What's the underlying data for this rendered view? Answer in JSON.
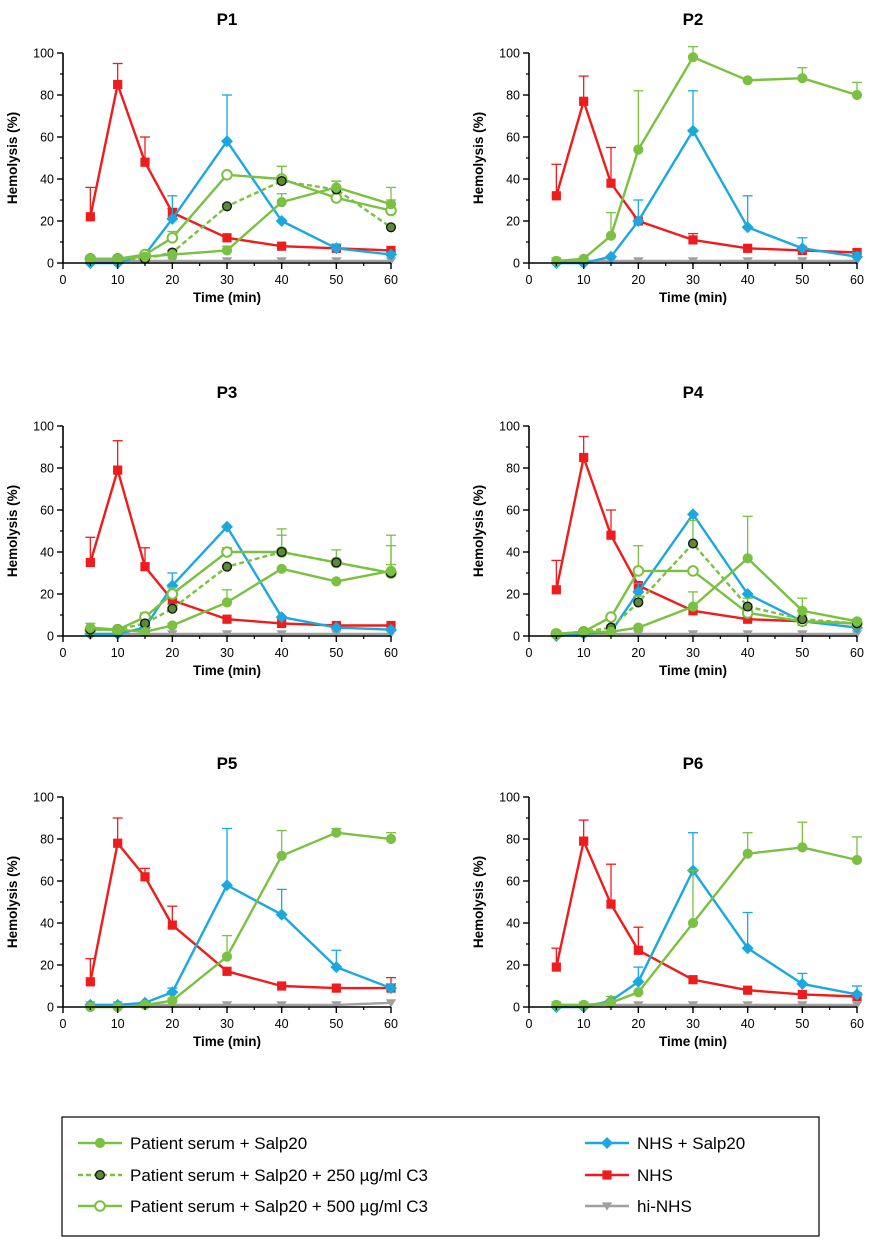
{
  "chart_data": [
    {
      "type": "line",
      "title": "P1",
      "xlabel": "Time (min)",
      "ylabel": "Hemolysis (%)",
      "xlim": [
        0,
        60
      ],
      "ylim": [
        0,
        100
      ],
      "xticks": [
        0,
        10,
        20,
        30,
        40,
        50,
        60
      ],
      "yticks": [
        0,
        20,
        40,
        60,
        80,
        100
      ],
      "x": [
        5,
        10,
        15,
        20,
        30,
        40,
        50,
        60
      ],
      "series": [
        {
          "name": "Patient serum + Salp20",
          "values": [
            2,
            2,
            3,
            4,
            6,
            29,
            36,
            28
          ],
          "err": [
            0,
            0,
            1,
            1,
            2,
            4,
            3,
            8
          ]
        },
        {
          "name": "Patient serum + Salp20 + 250 µg/ml C3",
          "values": [
            2,
            2,
            2,
            5,
            27,
            39,
            35,
            17
          ],
          "err": [
            0,
            0,
            0,
            1,
            1,
            7,
            4,
            0
          ]
        },
        {
          "name": "Patient serum + Salp20 + 500 µg/ml C3",
          "values": [
            2,
            2,
            4,
            12,
            42,
            40,
            31,
            25
          ],
          "err": [
            0,
            0,
            1,
            3,
            0,
            6,
            4,
            5
          ]
        },
        {
          "name": "NHS + Salp20",
          "values": [
            0,
            0,
            4,
            21,
            58,
            20,
            7,
            4
          ],
          "err": [
            0,
            0,
            1,
            11,
            22,
            0,
            2,
            1
          ]
        },
        {
          "name": "NHS",
          "values": [
            22,
            85,
            48,
            24,
            12,
            8,
            7,
            6
          ],
          "err": [
            14,
            10,
            12,
            2,
            0,
            0,
            0,
            0
          ]
        },
        {
          "name": "hi-NHS",
          "values": [
            1,
            1,
            1,
            1,
            1,
            1,
            1,
            1
          ],
          "err": [
            0,
            0,
            0,
            0,
            0,
            0,
            0,
            0
          ]
        }
      ]
    },
    {
      "type": "line",
      "title": "P2",
      "xlabel": "Time (min)",
      "ylabel": "Hemolysis (%)",
      "xlim": [
        0,
        60
      ],
      "ylim": [
        0,
        100
      ],
      "xticks": [
        0,
        10,
        20,
        30,
        40,
        50,
        60
      ],
      "yticks": [
        0,
        20,
        40,
        60,
        80,
        100
      ],
      "x": [
        5,
        10,
        15,
        20,
        30,
        40,
        50,
        60
      ],
      "series": [
        {
          "name": "Patient serum + Salp20",
          "values": [
            1,
            2,
            13,
            54,
            98,
            87,
            88,
            80
          ],
          "err": [
            0,
            0,
            11,
            28,
            5,
            0,
            5,
            6
          ]
        },
        {
          "name": "NHS + Salp20",
          "values": [
            0,
            0,
            3,
            20,
            63,
            17,
            7,
            3
          ],
          "err": [
            0,
            0,
            0,
            10,
            19,
            15,
            5,
            2
          ]
        },
        {
          "name": "NHS",
          "values": [
            32,
            77,
            38,
            20,
            11,
            7,
            6,
            5
          ],
          "err": [
            15,
            12,
            17,
            0,
            3,
            0,
            0,
            0
          ]
        },
        {
          "name": "hi-NHS",
          "values": [
            1,
            1,
            1,
            1,
            1,
            1,
            1,
            1
          ],
          "err": [
            0,
            0,
            0,
            0,
            0,
            0,
            0,
            0
          ]
        }
      ]
    },
    {
      "type": "line",
      "title": "P3",
      "xlabel": "Time (min)",
      "ylabel": "Hemolysis (%)",
      "xlim": [
        0,
        60
      ],
      "ylim": [
        0,
        100
      ],
      "xticks": [
        0,
        10,
        20,
        30,
        40,
        50,
        60
      ],
      "yticks": [
        0,
        20,
        40,
        60,
        80,
        100
      ],
      "x": [
        5,
        10,
        15,
        20,
        30,
        40,
        50,
        60
      ],
      "series": [
        {
          "name": "Patient serum + Salp20",
          "values": [
            4,
            3,
            2,
            5,
            16,
            32,
            26,
            31
          ],
          "err": [
            2,
            0,
            0,
            1,
            6,
            0,
            0,
            17
          ]
        },
        {
          "name": "Patient serum + Salp20 + 250 µg/ml C3",
          "values": [
            3,
            3,
            6,
            13,
            33,
            40,
            35,
            30
          ],
          "err": [
            0,
            0,
            1,
            2,
            0,
            11,
            0,
            13
          ]
        },
        {
          "name": "Patient serum + Salp20 + 500 µg/ml C3",
          "values": [
            3,
            3,
            9,
            20,
            40,
            40,
            35,
            30
          ],
          "err": [
            1,
            0,
            2,
            3,
            2,
            8,
            6,
            4
          ]
        },
        {
          "name": "NHS + Salp20",
          "values": [
            1,
            1,
            4,
            24,
            52,
            9,
            4,
            3
          ],
          "err": [
            0,
            0,
            1,
            6,
            0,
            0,
            0,
            0
          ]
        },
        {
          "name": "NHS",
          "values": [
            35,
            79,
            33,
            17,
            8,
            6,
            5,
            5
          ],
          "err": [
            12,
            14,
            9,
            0,
            0,
            0,
            0,
            0
          ]
        },
        {
          "name": "hi-NHS",
          "values": [
            1,
            1,
            1,
            1,
            1,
            1,
            1,
            1
          ],
          "err": [
            0,
            0,
            0,
            0,
            0,
            0,
            0,
            0
          ]
        }
      ]
    },
    {
      "type": "line",
      "title": "P4",
      "xlabel": "Time (min)",
      "ylabel": "Hemolysis (%)",
      "xlim": [
        0,
        60
      ],
      "ylim": [
        0,
        100
      ],
      "xticks": [
        0,
        10,
        20,
        30,
        40,
        50,
        60
      ],
      "yticks": [
        0,
        20,
        40,
        60,
        80,
        100
      ],
      "x": [
        5,
        10,
        15,
        20,
        30,
        40,
        50,
        60
      ],
      "series": [
        {
          "name": "Patient serum + Salp20",
          "values": [
            1,
            2,
            2,
            4,
            14,
            37,
            12,
            7
          ],
          "err": [
            0,
            0,
            0,
            1,
            7,
            20,
            6,
            1
          ]
        },
        {
          "name": "Patient serum + Salp20 + 250 µg/ml C3",
          "values": [
            1,
            2,
            4,
            16,
            44,
            14,
            8,
            6
          ],
          "err": [
            0,
            0,
            1,
            3,
            11,
            4,
            2,
            0
          ]
        },
        {
          "name": "Patient serum + Salp20 + 500 µg/ml C3",
          "values": [
            1,
            2,
            9,
            31,
            31,
            11,
            7,
            6
          ],
          "err": [
            0,
            0,
            1,
            12,
            0,
            2,
            1,
            1
          ]
        },
        {
          "name": "NHS + Salp20",
          "values": [
            0,
            1,
            2,
            21,
            58,
            20,
            7,
            4
          ],
          "err": [
            0,
            0,
            0,
            4,
            0,
            0,
            0,
            0
          ]
        },
        {
          "name": "NHS",
          "values": [
            22,
            85,
            48,
            24,
            12,
            8,
            7,
            6
          ],
          "err": [
            14,
            10,
            12,
            0,
            0,
            0,
            0,
            0
          ]
        },
        {
          "name": "hi-NHS",
          "values": [
            1,
            1,
            1,
            1,
            1,
            1,
            1,
            1
          ],
          "err": [
            0,
            0,
            0,
            0,
            0,
            0,
            0,
            0
          ]
        }
      ]
    },
    {
      "type": "line",
      "title": "P5",
      "xlabel": "Time (min)",
      "ylabel": "Hemolysis (%)",
      "xlim": [
        0,
        60
      ],
      "ylim": [
        0,
        100
      ],
      "xticks": [
        0,
        10,
        20,
        30,
        40,
        50,
        60
      ],
      "yticks": [
        0,
        20,
        40,
        60,
        80,
        100
      ],
      "x": [
        5,
        10,
        15,
        20,
        30,
        40,
        50,
        60
      ],
      "series": [
        {
          "name": "Patient serum + Salp20",
          "values": [
            0,
            0,
            1,
            3,
            24,
            72,
            83,
            80
          ],
          "err": [
            0,
            0,
            0,
            1,
            10,
            12,
            2,
            3
          ]
        },
        {
          "name": "NHS + Salp20",
          "values": [
            1,
            1,
            2,
            7,
            58,
            44,
            19,
            9
          ],
          "err": [
            0,
            0,
            0,
            2,
            27,
            12,
            8,
            2
          ]
        },
        {
          "name": "NHS",
          "values": [
            12,
            78,
            62,
            39,
            17,
            10,
            9,
            9
          ],
          "err": [
            11,
            12,
            4,
            9,
            0,
            0,
            0,
            5
          ]
        },
        {
          "name": "hi-NHS",
          "values": [
            1,
            1,
            1,
            1,
            1,
            1,
            1,
            2
          ],
          "err": [
            0,
            0,
            0,
            0,
            0,
            0,
            0,
            0
          ]
        }
      ]
    },
    {
      "type": "line",
      "title": "P6",
      "xlabel": "Time (min)",
      "ylabel": "Hemolysis (%)",
      "xlim": [
        0,
        60
      ],
      "ylim": [
        0,
        100
      ],
      "xticks": [
        0,
        10,
        20,
        30,
        40,
        50,
        60
      ],
      "yticks": [
        0,
        20,
        40,
        60,
        80,
        100
      ],
      "x": [
        5,
        10,
        15,
        20,
        30,
        40,
        50,
        60
      ],
      "series": [
        {
          "name": "Patient serum + Salp20",
          "values": [
            1,
            1,
            2,
            7,
            40,
            73,
            76,
            70
          ],
          "err": [
            0,
            0,
            3,
            0,
            25,
            10,
            12,
            11
          ]
        },
        {
          "name": "NHS + Salp20",
          "values": [
            0,
            0,
            3,
            12,
            65,
            28,
            11,
            6
          ],
          "err": [
            0,
            0,
            0,
            7,
            18,
            17,
            5,
            4
          ]
        },
        {
          "name": "NHS",
          "values": [
            19,
            79,
            49,
            27,
            13,
            8,
            6,
            5
          ],
          "err": [
            9,
            10,
            19,
            11,
            0,
            0,
            0,
            0
          ]
        },
        {
          "name": "hi-NHS",
          "values": [
            1,
            1,
            1,
            1,
            1,
            1,
            1,
            1
          ],
          "err": [
            0,
            0,
            0,
            0,
            0,
            0,
            0,
            0
          ]
        }
      ]
    }
  ],
  "styles": {
    "Patient serum + Salp20": {
      "color": "#7ac142",
      "marker": "circle-filled",
      "dash": "solid"
    },
    "Patient serum + Salp20 + 250 µg/ml C3": {
      "color": "#7ac142",
      "marker": "circle-dark",
      "dash": "dashed",
      "fill": "#5a8a3a"
    },
    "Patient serum + Salp20 + 500 µg/ml C3": {
      "color": "#7ac142",
      "marker": "circle-open",
      "dash": "solid"
    },
    "NHS + Salp20": {
      "color": "#1ba8e0",
      "marker": "diamond",
      "dash": "solid"
    },
    "NHS": {
      "color": "#ee1c1c",
      "marker": "square",
      "dash": "solid"
    },
    "hi-NHS": {
      "color": "#a0a0a0",
      "marker": "triangle-down",
      "dash": "solid"
    }
  },
  "legend": {
    "items": [
      "Patient serum + Salp20",
      "Patient serum + Salp20 + 250 µg/ml C3",
      "Patient serum + Salp20 + 500 µg/ml C3",
      "NHS + Salp20",
      "NHS",
      "hi-NHS"
    ]
  }
}
